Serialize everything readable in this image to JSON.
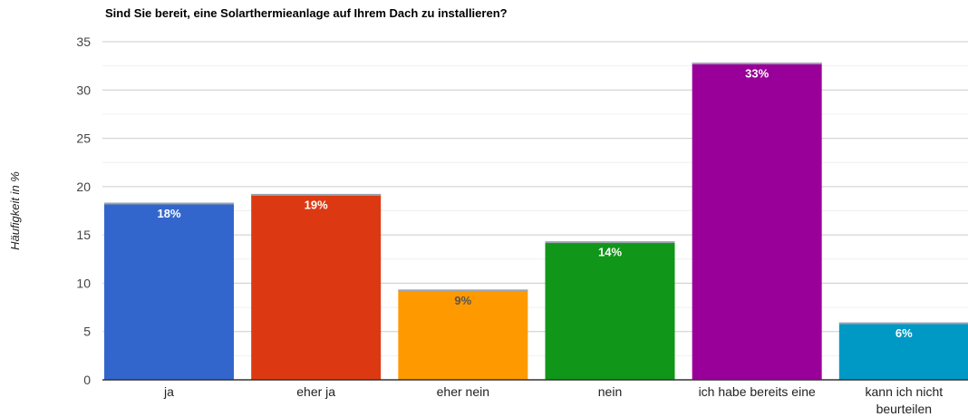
{
  "chart_data": {
    "type": "bar",
    "title": "Sind Sie bereit, eine Solarthermieanlage auf Ihrem Dach zu installieren?",
    "xlabel": "",
    "ylabel": "Häufigkeit in %",
    "ylim": [
      0,
      35
    ],
    "yticks": [
      "0",
      "5",
      "10",
      "15",
      "20",
      "25",
      "30",
      "35"
    ],
    "grid": true,
    "categories": [
      [
        "ja"
      ],
      [
        "eher ja"
      ],
      [
        "eher nein"
      ],
      [
        "nein"
      ],
      [
        "ich habe bereits eine"
      ],
      [
        "kann ich nicht",
        "beurteilen"
      ]
    ],
    "values": [
      18.3,
      19.2,
      9.3,
      14.3,
      32.8,
      5.9
    ],
    "data_labels": [
      "18%",
      "19%",
      "9%",
      "14%",
      "33%",
      "6%"
    ],
    "colors": [
      "#3366cc",
      "#dc3912",
      "#ff9900",
      "#109618",
      "#990099",
      "#0099c6"
    ],
    "label_colors": [
      "#ffffff",
      "#ffffff",
      "#555555",
      "#ffffff",
      "#ffffff",
      "#ffffff"
    ]
  }
}
